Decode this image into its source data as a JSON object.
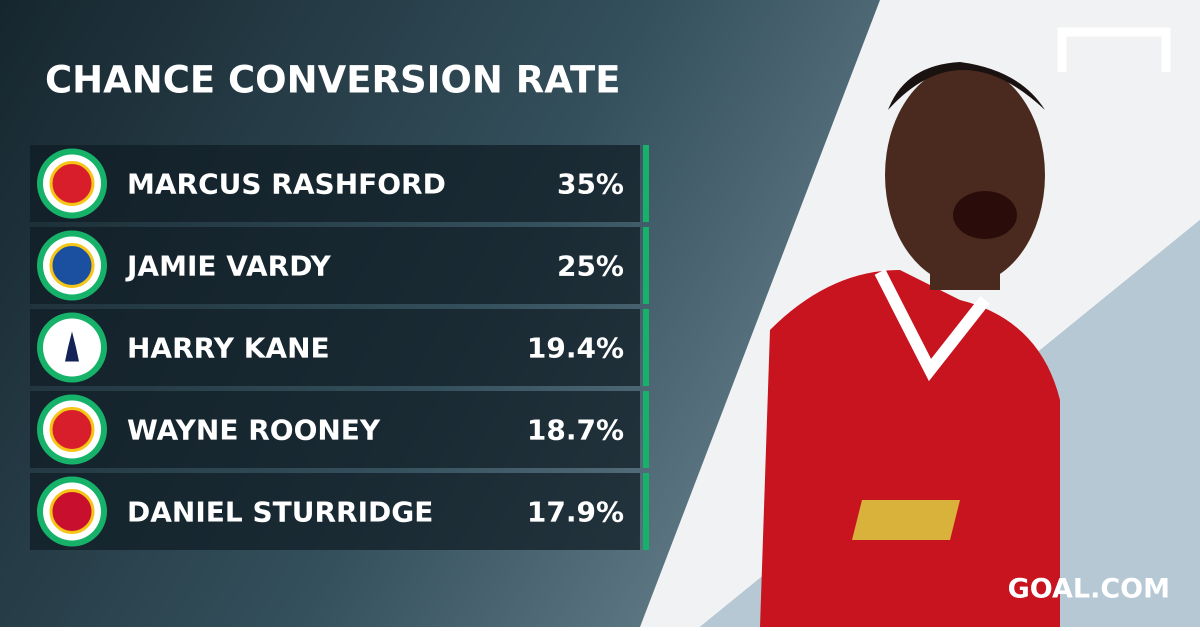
{
  "header": {
    "title": "CHANCE CONVERSION RATE"
  },
  "table": {
    "rows": [
      {
        "name": "MARCUS RASHFORD",
        "value": "35%",
        "club": "manutd"
      },
      {
        "name": "JAMIE VARDY",
        "value": "25%",
        "club": "leicester"
      },
      {
        "name": "HARRY KANE",
        "value": "19.4%",
        "club": "tottenham"
      },
      {
        "name": "WAYNE ROONEY",
        "value": "18.7%",
        "club": "manutd"
      },
      {
        "name": "DANIEL STURRIDGE",
        "value": "17.9%",
        "club": "liverpool"
      }
    ]
  },
  "footer": {
    "brand": "GOAL.COM"
  }
}
